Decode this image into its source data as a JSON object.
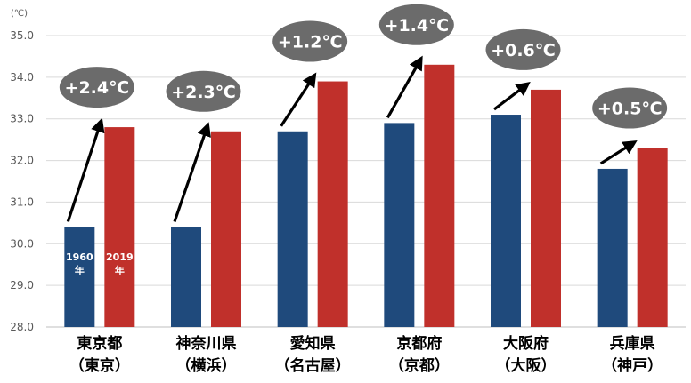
{
  "chart_data": {
    "type": "bar",
    "unit_label": "(℃)",
    "ylim": [
      28.0,
      35.0
    ],
    "ytick_step": 1.0,
    "yticks": [
      "28.0",
      "29.0",
      "30.0",
      "31.0",
      "32.0",
      "33.0",
      "34.0",
      "35.0"
    ],
    "grid": true,
    "categories": [
      {
        "line1": "東京都",
        "line2": "（東京）"
      },
      {
        "line1": "神奈川県",
        "line2": "（横浜）"
      },
      {
        "line1": "愛知県",
        "line2": "（名古屋）"
      },
      {
        "line1": "京都府",
        "line2": "（京都）"
      },
      {
        "line1": "大阪府",
        "line2": "（大阪）"
      },
      {
        "line1": "兵庫県",
        "line2": "（神戸）"
      }
    ],
    "series": [
      {
        "name": "1960年",
        "label_line1": "1960",
        "label_line2": "年",
        "color": "#1f4a7c",
        "values": [
          30.4,
          30.4,
          32.7,
          32.9,
          33.1,
          31.8
        ]
      },
      {
        "name": "2019年",
        "label_line1": "2019",
        "label_line2": "年",
        "color": "#c0302b",
        "values": [
          32.8,
          32.7,
          33.9,
          34.3,
          33.7,
          32.3
        ]
      }
    ],
    "annotations": [
      "+2.4℃",
      "+2.3℃",
      "+1.2℃",
      "+1.4℃",
      "+0.6℃",
      "+0.5℃"
    ],
    "colors": {
      "bubble_fill": "#6b6b6b",
      "bubble_text": "#ffffff",
      "arrow": "#000000",
      "grid": "#d9d9d9",
      "axis_text": "#595959",
      "category_text": "#000000"
    }
  }
}
